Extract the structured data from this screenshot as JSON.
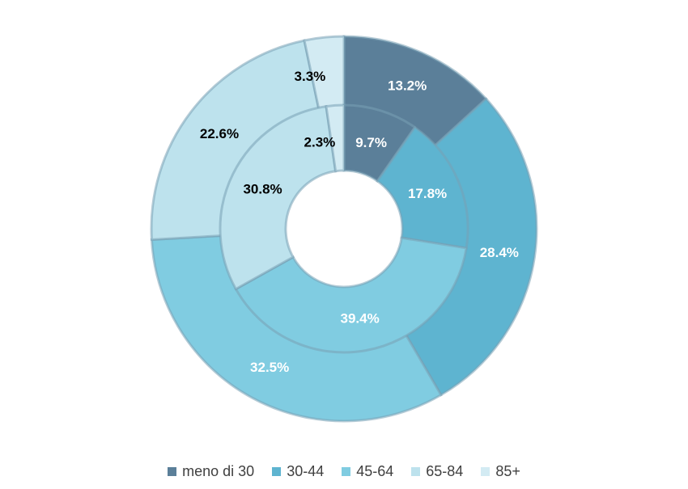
{
  "chart_data": {
    "type": "pie",
    "variant": "nested-donut",
    "categories": [
      "meno di 30",
      "30-44",
      "45-64",
      "65-84",
      "85+"
    ],
    "colors": [
      "#5b7f99",
      "#5eb4d0",
      "#80cce1",
      "#bde2ed",
      "#d3ebf3"
    ],
    "label_colors": [
      "#ffffff",
      "#ffffff",
      "#ffffff",
      "#000000",
      "#000000"
    ],
    "series": [
      {
        "ring": "outer",
        "values": [
          13.2,
          28.4,
          32.5,
          22.6,
          3.3
        ],
        "labels": [
          "13.2%",
          "28.4%",
          "32.5%",
          "22.6%",
          "3.3%"
        ]
      },
      {
        "ring": "inner",
        "values": [
          9.7,
          17.8,
          39.4,
          30.8,
          2.3
        ],
        "labels": [
          "9.7%",
          "17.8%",
          "39.4%",
          "30.8%",
          "2.3%"
        ]
      }
    ],
    "legend_position": "bottom"
  }
}
